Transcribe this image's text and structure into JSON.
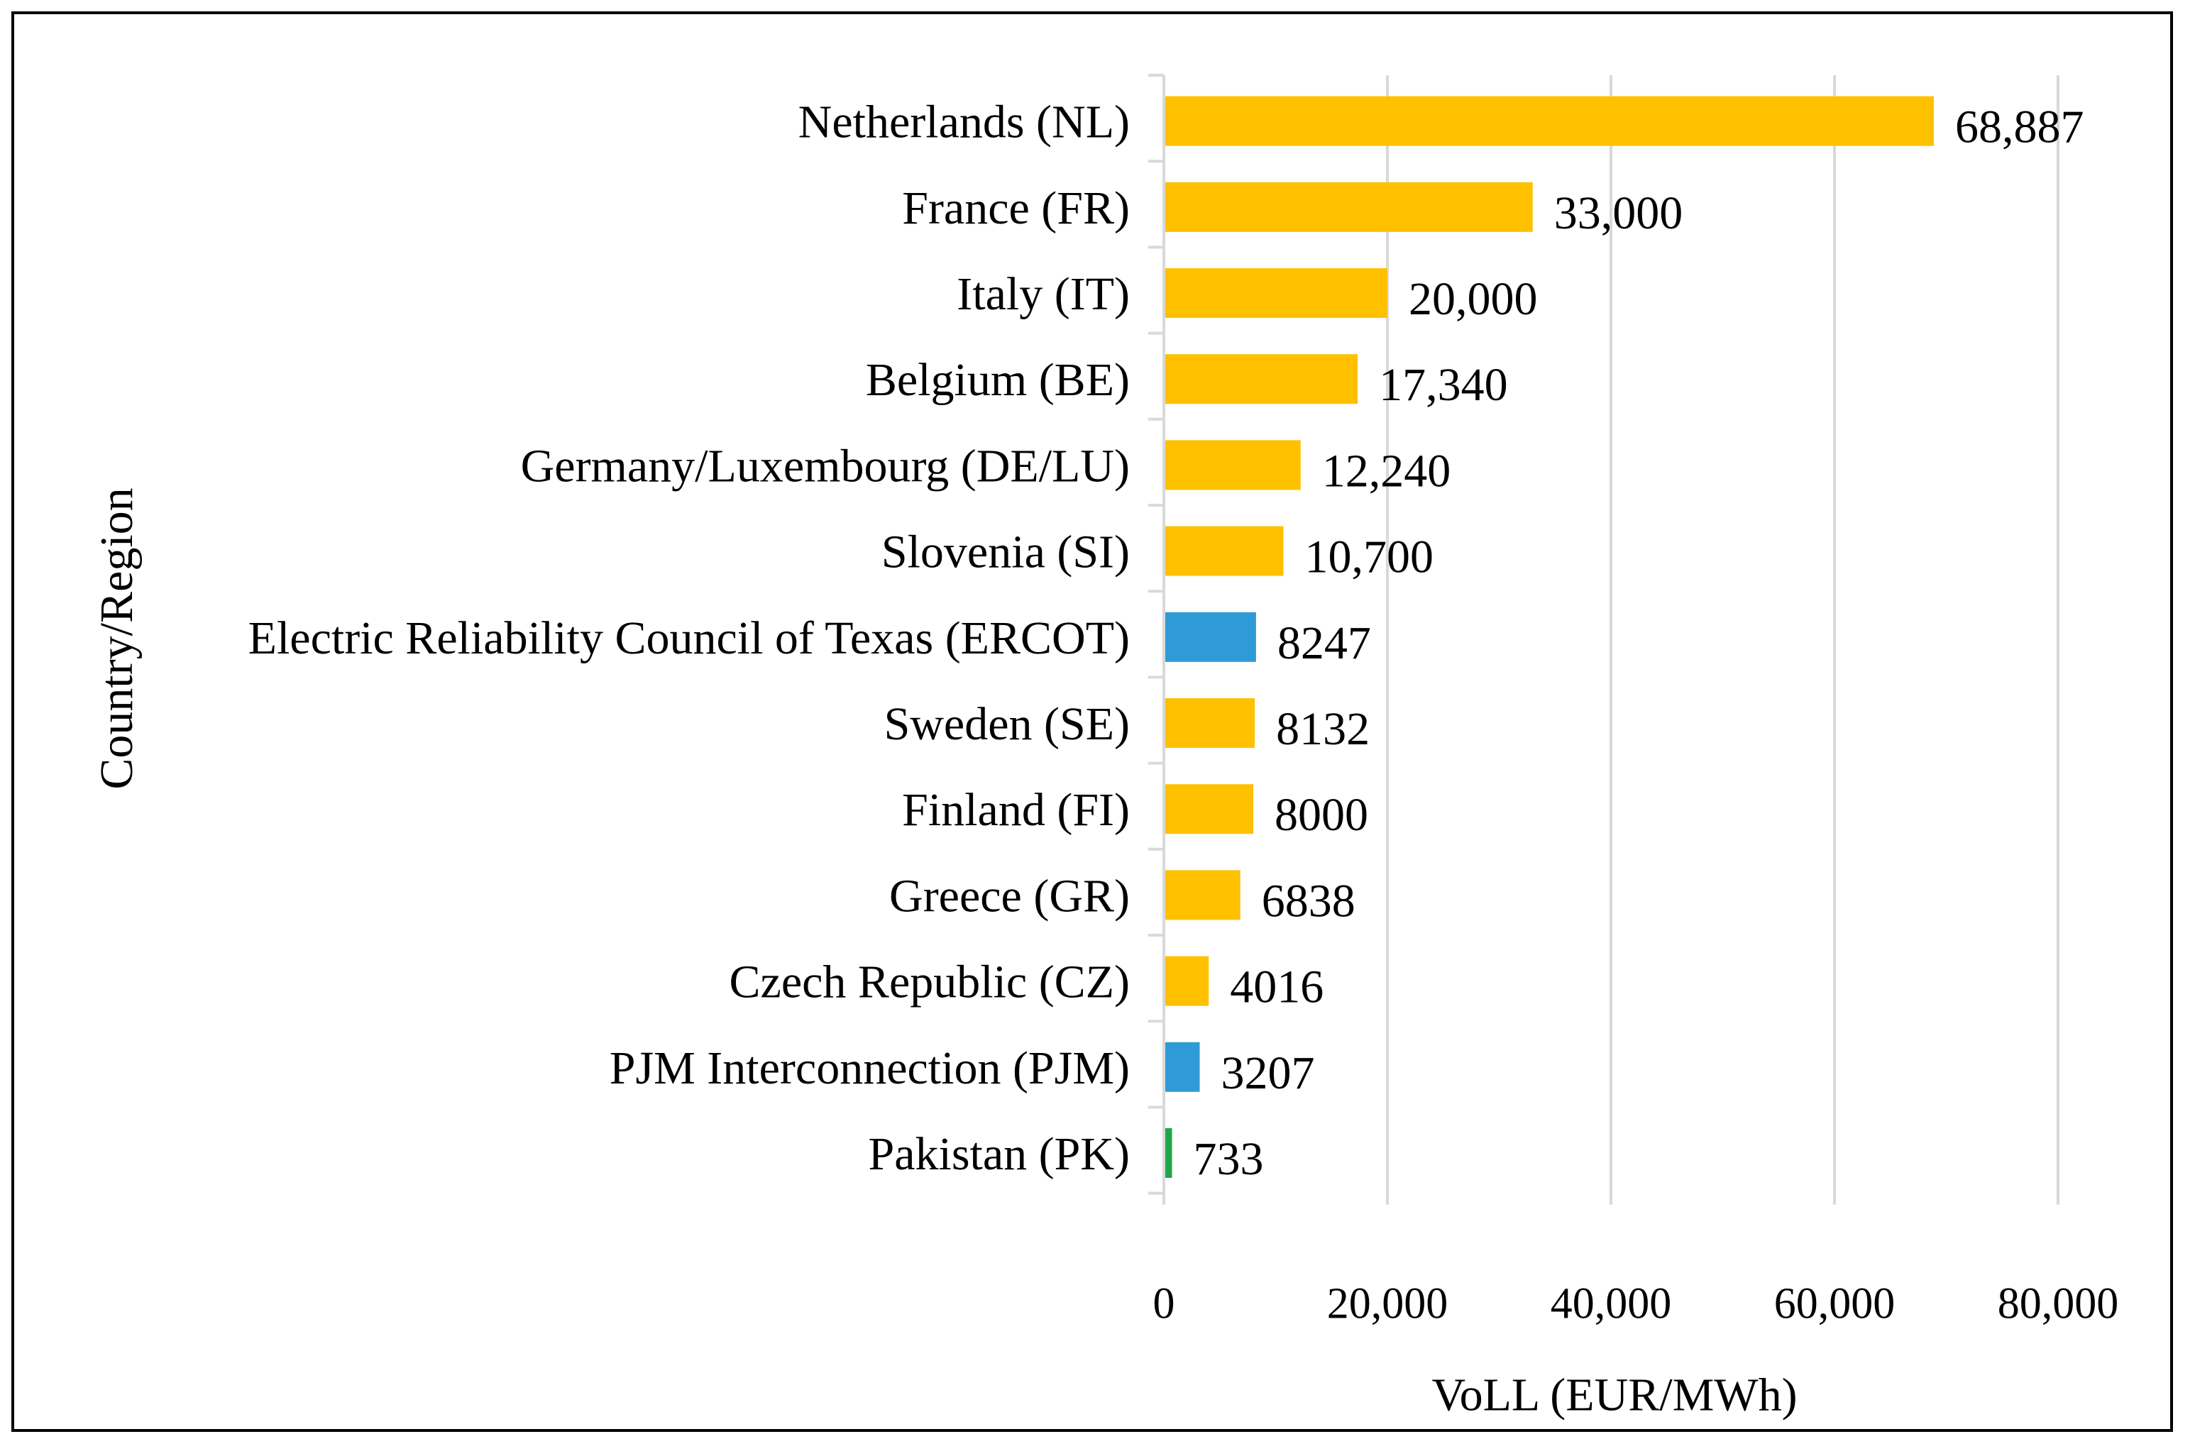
{
  "chart_data": {
    "type": "bar",
    "orientation": "horizontal",
    "title": "",
    "xlabel": "VoLL (EUR/MWh)",
    "ylabel": "Country/Region",
    "xlim": [
      0,
      80000
    ],
    "xticks": [
      0,
      20000,
      40000,
      60000,
      80000
    ],
    "xtick_labels": [
      "0",
      "20,000",
      "40,000",
      "60,000",
      "80,000"
    ],
    "grid": true,
    "legend": "none",
    "categories": [
      "Netherlands (NL)",
      "France (FR)",
      "Italy (IT)",
      "Belgium (BE)",
      "Germany/Luxembourg (DE/LU)",
      "Slovenia (SI)",
      "Electric Reliability Council of Texas (ERCOT)",
      "Sweden (SE)",
      "Finland (FI)",
      "Greece (GR)",
      "Czech Republic (CZ)",
      "PJM Interconnection (PJM)",
      "Pakistan (PK)"
    ],
    "values": [
      68887,
      33000,
      20000,
      17340,
      12240,
      10700,
      8247,
      8132,
      8000,
      6838,
      4016,
      3207,
      733
    ],
    "value_labels": [
      "68,887",
      "33,000",
      "20,000",
      "17,340",
      "12,240",
      "10,700",
      "8247",
      "8132",
      "8000",
      "6838",
      "4016",
      "3207",
      "733"
    ],
    "bar_colors": [
      "#FFC000",
      "#FFC000",
      "#FFC000",
      "#FFC000",
      "#FFC000",
      "#FFC000",
      "#2E9BD6",
      "#FFC000",
      "#FFC000",
      "#FFC000",
      "#FFC000",
      "#2E9BD6",
      "#1FA64A"
    ],
    "gridline_color": "#D9D9D9",
    "axis_color": "#D9D9D9"
  }
}
